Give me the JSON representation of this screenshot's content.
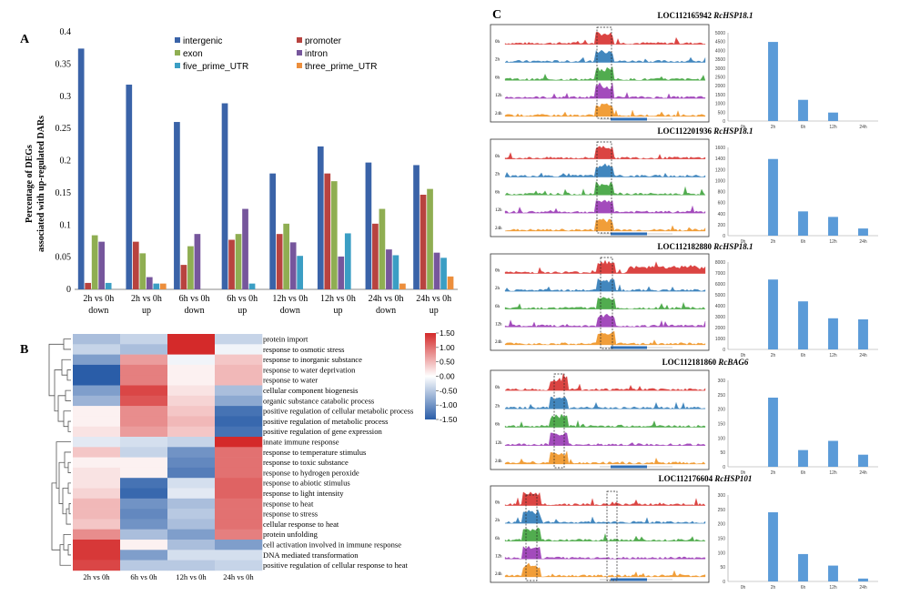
{
  "chart_data": [
    {
      "panel": "A",
      "type": "bar",
      "ylabel_line1": "Percentage of DEGs",
      "ylabel_line2": "associated with up-regulated DARs",
      "ylim": [
        0,
        0.4
      ],
      "yticks": [
        "0",
        "0.05",
        "0.1",
        "0.15",
        "0.2",
        "0.25",
        "0.3",
        "0.35",
        "0.4"
      ],
      "categories": [
        {
          "line1": "2h vs 0h",
          "line2": "down"
        },
        {
          "line1": "2h vs 0h",
          "line2": "up"
        },
        {
          "line1": "6h vs 0h",
          "line2": "down"
        },
        {
          "line1": "6h vs 0h",
          "line2": "up"
        },
        {
          "line1": "12h vs 0h",
          "line2": "down"
        },
        {
          "line1": "12h vs 0h",
          "line2": "up"
        },
        {
          "line1": "24h vs 0h",
          "line2": "down"
        },
        {
          "line1": "24h vs 0h",
          "line2": "up"
        }
      ],
      "series": [
        {
          "name": "intergenic",
          "color": "#3a63a8",
          "values": [
            0.374,
            0.318,
            0.26,
            0.289,
            0.18,
            0.222,
            0.197,
            0.193
          ]
        },
        {
          "name": "promoter",
          "color": "#b8433f",
          "values": [
            0.01,
            0.074,
            0.038,
            0.077,
            0.086,
            0.18,
            0.102,
            0.147
          ]
        },
        {
          "name": "exon",
          "color": "#8fae52",
          "values": [
            0.084,
            0.056,
            0.067,
            0.086,
            0.102,
            0.168,
            0.125,
            0.156
          ]
        },
        {
          "name": "intron",
          "color": "#76569c",
          "values": [
            0.074,
            0.019,
            0.086,
            0.125,
            0.073,
            0.051,
            0.062,
            0.057
          ]
        },
        {
          "name": "five_prime_UTR",
          "color": "#3b9ec4",
          "values": [
            0.01,
            0.009,
            0.0,
            0.009,
            0.052,
            0.087,
            0.053,
            0.049
          ]
        },
        {
          "name": "three_prime_UTR",
          "color": "#ec8e3c",
          "values": [
            0.0,
            0.009,
            0.0,
            0.0,
            0.0,
            0.0,
            0.009,
            0.02
          ]
        }
      ]
    },
    {
      "panel": "B",
      "type": "heatmap",
      "columns": [
        "2h vs 0h",
        "6h vs 0h",
        "12h vs 0h",
        "24h vs 0h"
      ],
      "rows": [
        {
          "term": "protein import",
          "values": [
            -0.6,
            -0.4,
            1.5,
            -0.4
          ]
        },
        {
          "term": "response to osmotic stress",
          "values": [
            -0.4,
            -0.6,
            1.5,
            -0.1
          ]
        },
        {
          "term": "response to inorganic substance",
          "values": [
            -0.9,
            0.7,
            -0.1,
            0.4
          ]
        },
        {
          "term": "response to water deprivation",
          "values": [
            -1.5,
            0.9,
            0.1,
            0.5
          ]
        },
        {
          "term": "response to water",
          "values": [
            -1.5,
            0.9,
            0.1,
            0.5
          ]
        },
        {
          "term": "cellular component biogenesis",
          "values": [
            -0.9,
            1.3,
            0.2,
            -0.6
          ]
        },
        {
          "term": "organic substance catabolic process",
          "values": [
            -0.7,
            1.2,
            0.3,
            -0.8
          ]
        },
        {
          "term": "positive regulation of cellular metabolic process",
          "values": [
            0.1,
            0.8,
            0.4,
            -1.3
          ]
        },
        {
          "term": "positive regulation of metabolic process",
          "values": [
            0.1,
            0.8,
            0.5,
            -1.4
          ]
        },
        {
          "term": "positive regulation of gene expression",
          "values": [
            0.2,
            0.7,
            0.4,
            -1.3
          ]
        },
        {
          "term": "innate immune response",
          "values": [
            -0.2,
            -0.3,
            -0.4,
            1.5
          ]
        },
        {
          "term": "response to temperature stimulus",
          "values": [
            0.4,
            -0.4,
            -1.0,
            1.0
          ]
        },
        {
          "term": "response to toxic substance",
          "values": [
            0.1,
            0.1,
            -1.1,
            1.0
          ]
        },
        {
          "term": "response to hydrogen peroxide",
          "values": [
            0.2,
            0.1,
            -1.2,
            1.0
          ]
        },
        {
          "term": "response to abiotic stimulus",
          "values": [
            0.2,
            -1.3,
            -0.3,
            1.1
          ]
        },
        {
          "term": "response to light intensity",
          "values": [
            0.3,
            -1.4,
            -0.2,
            1.1
          ]
        },
        {
          "term": "response to heat",
          "values": [
            0.5,
            -1.0,
            -0.6,
            1.0
          ]
        },
        {
          "term": "response to stress",
          "values": [
            0.5,
            -1.1,
            -0.5,
            1.0
          ]
        },
        {
          "term": "cellular response to heat",
          "values": [
            0.4,
            -1.0,
            -0.6,
            1.0
          ]
        },
        {
          "term": "protein unfolding",
          "values": [
            0.8,
            -0.6,
            -0.9,
            0.9
          ]
        },
        {
          "term": "cell activation involved in immune response",
          "values": [
            1.4,
            0.1,
            -0.6,
            -0.9
          ]
        },
        {
          "term": "DNA mediated transformation",
          "values": [
            1.4,
            -0.9,
            -0.3,
            -0.3
          ]
        },
        {
          "term": "positive regulation of cellular response to heat",
          "values": [
            1.3,
            -0.5,
            -0.5,
            -0.4
          ]
        }
      ],
      "colorbar": {
        "ticks": [
          "1.50",
          "1.00",
          "0.50",
          "0.00",
          "-0.50",
          "-1.00",
          "-1.50"
        ],
        "low": "#2a5da8",
        "mid": "#ffffff",
        "high": "#d42a2a"
      }
    },
    {
      "panel": "C",
      "type": "bar",
      "genes": [
        {
          "id": "LOC112165942",
          "name": "RcHSP18.1",
          "track_labels": [
            "0h",
            "2h",
            "6h",
            "12h",
            "24h"
          ],
          "categories": [
            "0h",
            "2h",
            "6h",
            "12h",
            "24h"
          ],
          "values": [
            0,
            4480,
            1200,
            480,
            0
          ],
          "yticks": [
            "0",
            "500",
            "1000",
            "1500",
            "2000",
            "2500",
            "3000",
            "3500",
            "4000",
            "4500",
            "5000"
          ],
          "ylim": [
            0,
            5000
          ]
        },
        {
          "id": "LOC112201936",
          "name": "RcHSP18.1",
          "track_labels": [
            "0h",
            "2h",
            "6h",
            "12h",
            "24h"
          ],
          "categories": [
            "0h",
            "2h",
            "6h",
            "12h",
            "24h"
          ],
          "values": [
            0,
            1390,
            440,
            340,
            130
          ],
          "yticks": [
            "0",
            "200",
            "400",
            "600",
            "800",
            "1000",
            "1200",
            "1400",
            "1600"
          ],
          "ylim": [
            0,
            1600
          ]
        },
        {
          "id": "LOC112182880",
          "name": "RcHSP18.1",
          "track_labels": [
            "0h",
            "2h",
            "6h",
            "12h",
            "24h"
          ],
          "categories": [
            "0h",
            "2h",
            "6h",
            "12h",
            "24h"
          ],
          "values": [
            0,
            6400,
            4400,
            2850,
            2750
          ],
          "yticks": [
            "0",
            "1000",
            "2000",
            "3000",
            "4000",
            "5000",
            "6000",
            "7000",
            "8000"
          ],
          "ylim": [
            0,
            8000
          ]
        },
        {
          "id": "LOC112181860",
          "name": "RcBAG6",
          "track_labels": [
            "0h",
            "2h",
            "6h",
            "12h",
            "24h"
          ],
          "categories": [
            "0h",
            "2h",
            "6h",
            "12h",
            "24h"
          ],
          "values": [
            0,
            240,
            58,
            90,
            42
          ],
          "yticks": [
            "0",
            "50",
            "100",
            "150",
            "200",
            "250",
            "300"
          ],
          "ylim": [
            0,
            300
          ]
        },
        {
          "id": "LOC112176604",
          "name": "RcHSP101",
          "track_labels": [
            "0h",
            "2h",
            "6h",
            "12h",
            "24h"
          ],
          "categories": [
            "0h",
            "2h",
            "6h",
            "12h",
            "24h"
          ],
          "values": [
            0,
            240,
            95,
            55,
            10
          ],
          "yticks": [
            "0",
            "50",
            "100",
            "150",
            "200",
            "250",
            "300"
          ],
          "ylim": [
            0,
            300
          ]
        }
      ],
      "track_colors": [
        "#d8302e",
        "#2e7bb8",
        "#3fa43c",
        "#9a38b5",
        "#f09424"
      ],
      "bar_color": "#5b9bd8"
    }
  ],
  "labels": {
    "panel_a": "A",
    "panel_b": "B",
    "panel_c": "C"
  }
}
